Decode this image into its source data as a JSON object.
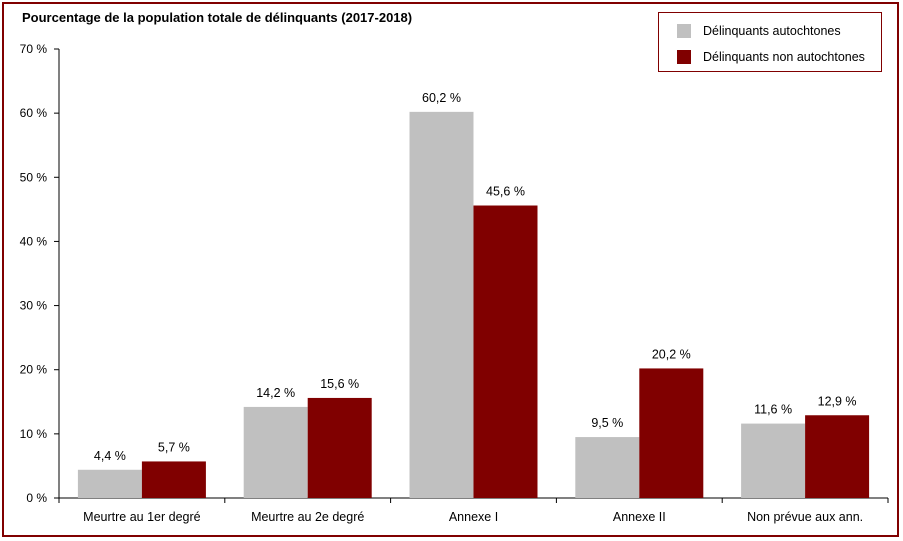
{
  "chart_data": {
    "type": "bar",
    "title": "Pourcentage de la population totale de délinquants (2017-2018)",
    "categories": [
      "Meurtre au 1er degré",
      "Meurtre au 2e degré",
      "Annexe I",
      "Annexe II",
      "Non prévue aux ann."
    ],
    "series": [
      {
        "name": "Délinquants autochtones",
        "color": "#c0c0c0",
        "values": [
          4.4,
          14.2,
          60.2,
          9.5,
          11.6
        ],
        "labels": [
          "4,4 %",
          "14,2 %",
          "60,2 %",
          "9,5 %",
          "11,6 %"
        ]
      },
      {
        "name": "Délinquants non autochtones",
        "color": "#800000",
        "values": [
          5.7,
          15.6,
          45.6,
          20.2,
          12.9
        ],
        "labels": [
          "5,7 %",
          "15,6 %",
          "45,6 %",
          "20,2 %",
          "12,9 %"
        ]
      }
    ],
    "ylim": [
      0,
      70
    ],
    "yticks": [
      0,
      10,
      20,
      30,
      40,
      50,
      60,
      70
    ],
    "ytick_labels": [
      "0 %",
      "10 %",
      "20 %",
      "30 %",
      "40 %",
      "50 %",
      "60 %",
      "70 %"
    ],
    "xlabel": "",
    "ylabel": "",
    "grid": false,
    "legend": "top-right"
  }
}
